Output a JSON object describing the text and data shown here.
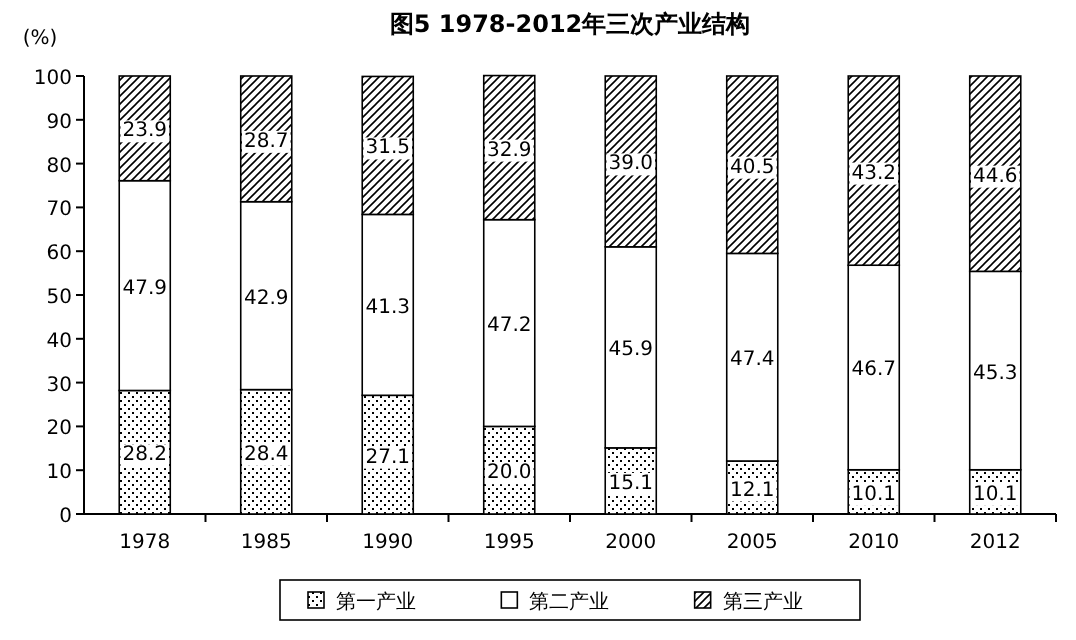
{
  "chart_data": {
    "type": "bar",
    "stacked": true,
    "title": "图5 1978-2012年三次产业结构",
    "ylabel": "(%)",
    "categories": [
      "1978",
      "1985",
      "1990",
      "1995",
      "2000",
      "2005",
      "2010",
      "2012"
    ],
    "series": [
      {
        "name": "第一产业",
        "color": "#000000",
        "values": [
          28.2,
          28.4,
          27.1,
          20.0,
          15.1,
          12.1,
          10.1,
          10.1
        ],
        "value_labels": [
          "28.2",
          "28.4",
          "27.1",
          "20.0",
          "15.1",
          "12.1",
          "10.1",
          "10.1"
        ]
      },
      {
        "name": "第二产业",
        "color": "#000000",
        "values": [
          47.9,
          42.9,
          41.3,
          47.2,
          45.9,
          47.4,
          46.7,
          45.3
        ],
        "value_labels": [
          "47.9",
          "42.9",
          "41.3",
          "47.2",
          "45.9",
          "47.4",
          "46.7",
          "45.3"
        ]
      },
      {
        "name": "第三产业",
        "color": "#000000",
        "values": [
          23.9,
          28.7,
          31.5,
          32.9,
          39.0,
          40.5,
          43.2,
          44.6
        ],
        "value_labels": [
          "23.9",
          "28.7",
          "31.5",
          "32.9",
          "39.0",
          "40.5",
          "43.2",
          "44.6"
        ]
      }
    ],
    "ylim": [
      0,
      100
    ],
    "yticks": [
      0,
      10,
      20,
      30,
      40,
      50,
      60,
      70,
      80,
      90,
      100
    ],
    "legend": "bottom",
    "grid": false
  }
}
